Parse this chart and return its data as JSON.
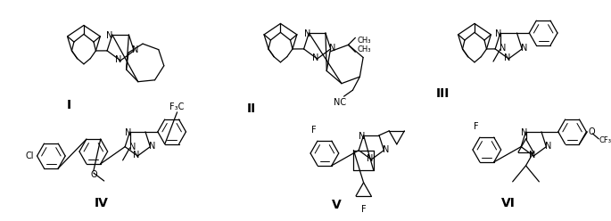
{
  "background_color": "#ffffff",
  "figsize": [
    6.85,
    2.48
  ],
  "dpi": 100,
  "labels": [
    "I",
    "II",
    "III",
    "IV",
    "V",
    "VI"
  ],
  "label_fontsize": 10
}
